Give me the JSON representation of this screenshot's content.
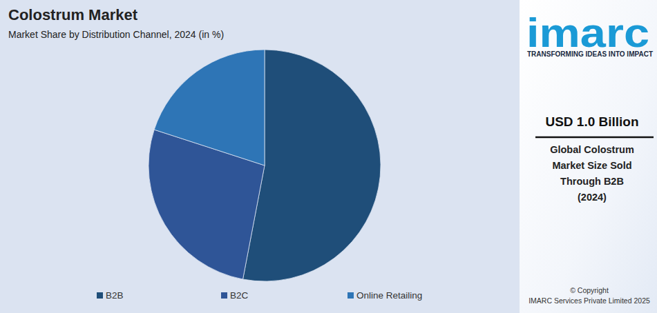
{
  "chart_data": {
    "type": "pie",
    "title": "Colostrum Market",
    "subtitle": "Market Share by Distribution Channel, 2024 (in %)",
    "categories": [
      "B2B",
      "B2C",
      "Online Retailing"
    ],
    "values": [
      53,
      27,
      20
    ],
    "colors": [
      "#1f4e79",
      "#2f5597",
      "#2e75b6"
    ],
    "legend": "bottom",
    "annotations": [
      "imarc",
      "TRANSFORMING IDEAS INTO IMPACT",
      "USD 1.0 Billion",
      "Global Colostrum",
      "Market Size Sold",
      "Through B2B",
      "(2024)",
      "© Copyright",
      "IMARC Services Private Limited 2025"
    ]
  }
}
